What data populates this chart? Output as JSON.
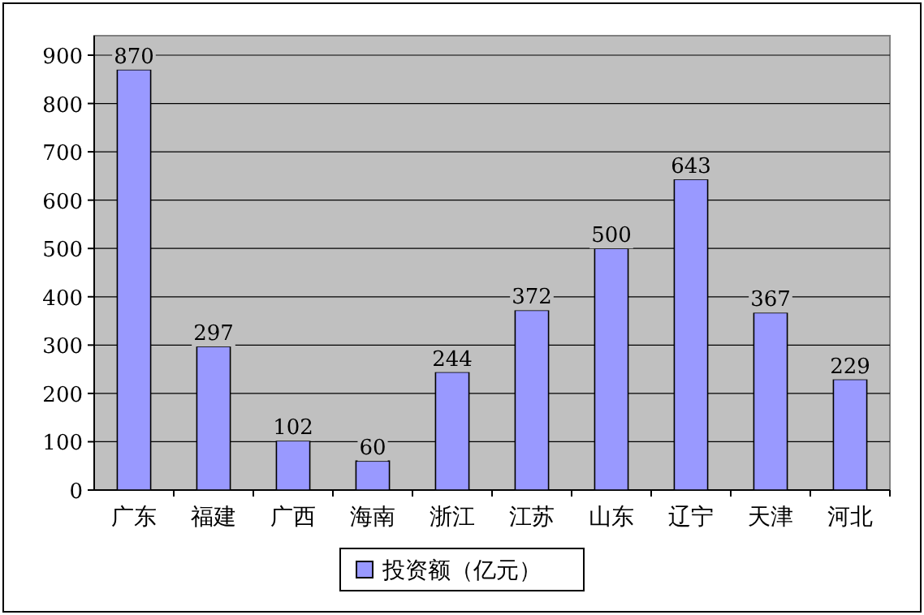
{
  "chart_data": {
    "type": "bar",
    "categories": [
      "广东",
      "福建",
      "广西",
      "海南",
      "浙江",
      "江苏",
      "山东",
      "辽宁",
      "天津",
      "河北"
    ],
    "series": [
      {
        "name": "投资额（亿元）",
        "color": "#9999ff",
        "values": [
          870,
          297,
          102,
          60,
          244,
          372,
          500,
          643,
          367,
          229
        ]
      }
    ],
    "ylim": [
      0,
      900
    ],
    "yticks": [
      0,
      100,
      200,
      300,
      400,
      500,
      600,
      700,
      800,
      900
    ],
    "grid": "y",
    "legend": "bottom",
    "data_labels": true
  }
}
